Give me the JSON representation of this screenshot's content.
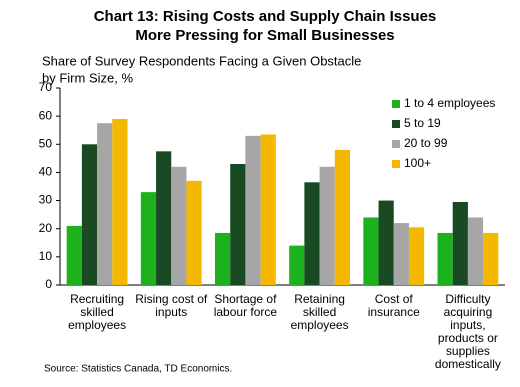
{
  "chart_data": {
    "type": "bar",
    "title": [
      "Chart 13: Rising Costs and Supply Chain Issues",
      "More Pressing for Small Businesses"
    ],
    "subtitle": [
      "Share of Survey Respondents Facing a Given Obstacle",
      "by Firm Size, %"
    ],
    "categories": [
      [
        "Recruiting",
        "skilled",
        "employees"
      ],
      [
        "Rising cost of",
        "inputs"
      ],
      [
        "Shortage of",
        "labour force"
      ],
      [
        "Retaining",
        "skilled",
        "employees"
      ],
      [
        "Cost of",
        "insurance"
      ],
      [
        "Difficulty",
        "acquiring",
        "inputs,",
        "products or",
        "supplies",
        "domestically"
      ]
    ],
    "series": [
      {
        "name": "1 to 4 employees",
        "color": "#1db21d",
        "values": [
          21,
          33,
          18.5,
          14,
          24,
          18.5
        ]
      },
      {
        "name": "5 to 19",
        "color": "#1a4a24",
        "values": [
          50,
          47.5,
          43,
          36.5,
          30,
          29.5
        ]
      },
      {
        "name": "20 to 99",
        "color": "#a6a6a6",
        "values": [
          57.5,
          42,
          53,
          42,
          22,
          24
        ]
      },
      {
        "name": "100+",
        "color": "#f5b800",
        "values": [
          59,
          37,
          53.5,
          48,
          20.5,
          18.5
        ]
      }
    ],
    "ylim": [
      0,
      70
    ],
    "yticks": [
      0,
      10,
      20,
      30,
      40,
      50,
      60,
      70
    ],
    "legend": "upper right",
    "source": "Source: Statistics Canada, TD Economics."
  }
}
